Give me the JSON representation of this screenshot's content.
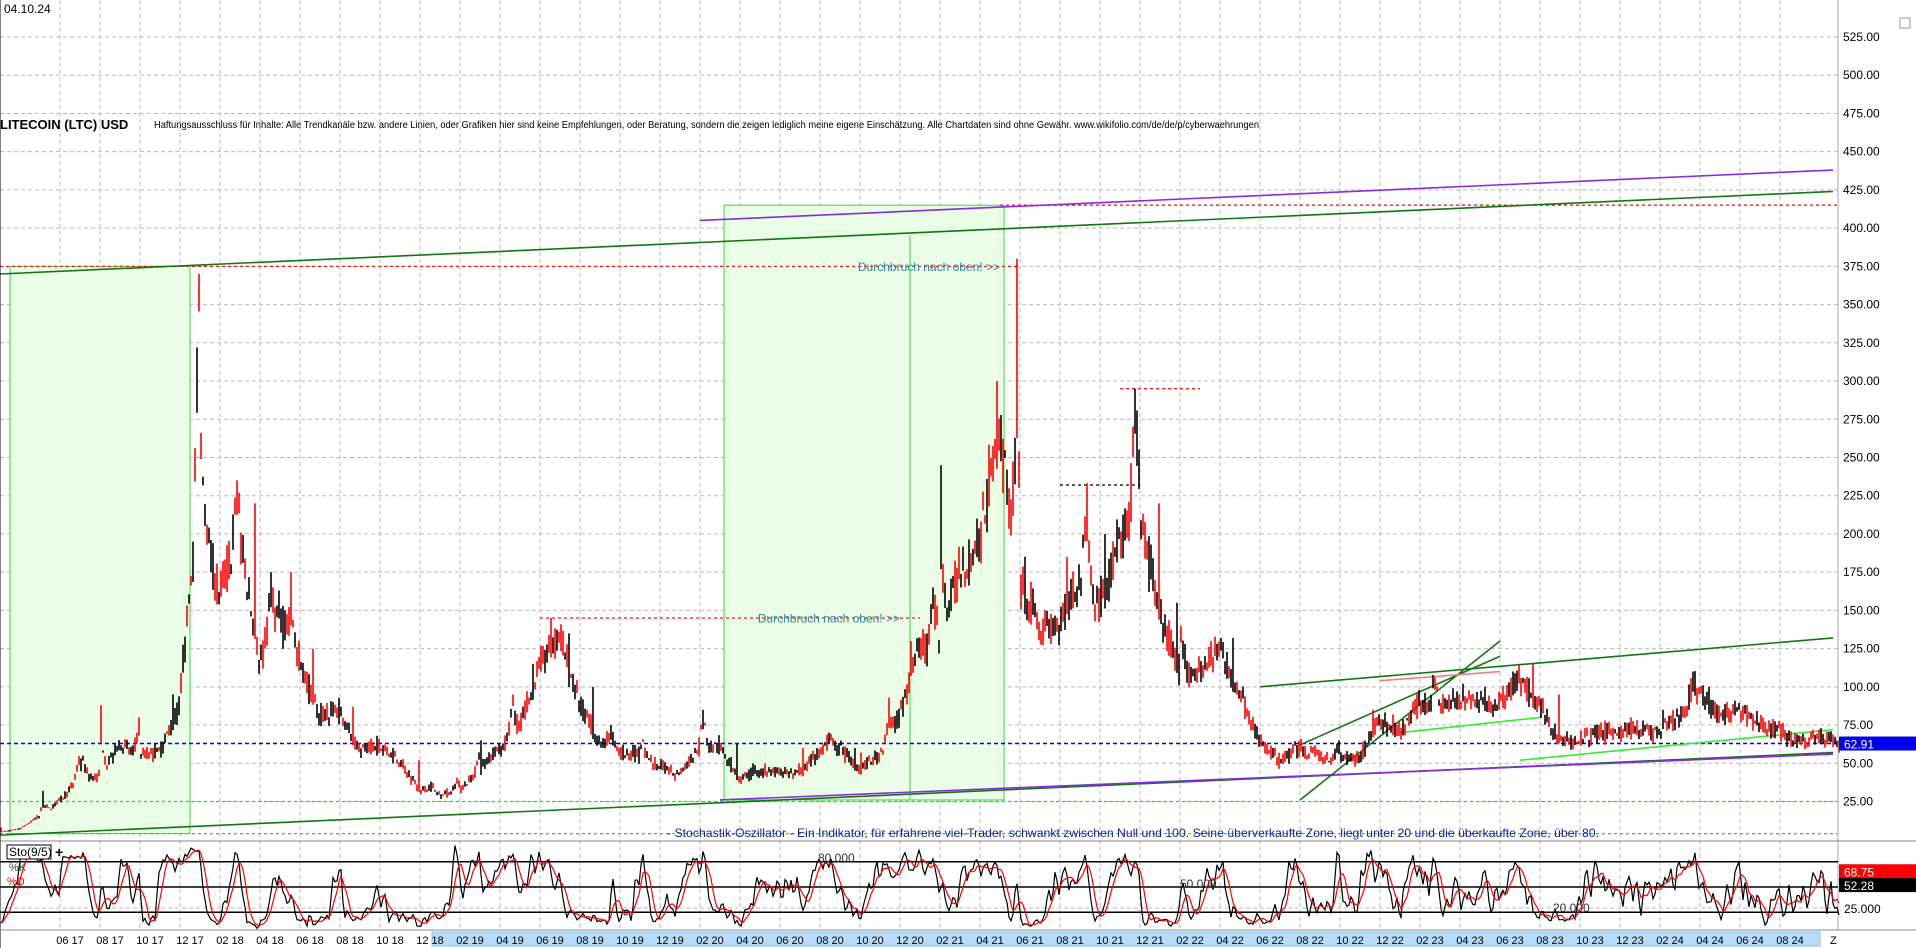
{
  "header": {
    "date": "04.10.24",
    "title": "LITECOIN (LTC) USD",
    "disclaimer": "Haftungsausschluss für Inhalte: Alle Trendkanäle bzw. andere Linien, oder Grafiken hier sind keine Empfehlungen, oder Beratung, sondern die zeigen lediglich meine eigene Einschätzung. Alle Chartdaten sind ohne Gewähr.  www.wikifolio.com/de/de/p/cyberwaehrungen"
  },
  "colors": {
    "up_bar": "#000000",
    "down_bar": "#ff0000",
    "box_fill": "#eafde6",
    "box_border": "#33dd33",
    "trend_green": "#117711",
    "trend_purple": "#8a2be2",
    "level_red": "#ee2222",
    "last_price": "#0000ee",
    "annotation": "#2a8a9a",
    "note": "#1a1aa0"
  },
  "chart_data": {
    "type": "bar",
    "title": "LITECOIN (LTC) USD",
    "months": [
      "2017-03",
      "2017-04",
      "2017-05",
      "2017-06",
      "2017-07",
      "2017-08",
      "2017-09",
      "2017-10",
      "2017-11",
      "2017-12",
      "2018-01",
      "2018-02",
      "2018-03",
      "2018-04",
      "2018-05",
      "2018-06",
      "2018-07",
      "2018-08",
      "2018-09",
      "2018-10",
      "2018-11",
      "2018-12",
      "2019-01",
      "2019-02",
      "2019-03",
      "2019-04",
      "2019-05",
      "2019-06",
      "2019-07",
      "2019-08",
      "2019-09",
      "2019-10",
      "2019-11",
      "2019-12",
      "2020-01",
      "2020-02",
      "2020-03",
      "2020-04",
      "2020-05",
      "2020-06",
      "2020-07",
      "2020-08",
      "2020-09",
      "2020-10",
      "2020-11",
      "2020-12",
      "2021-01",
      "2021-02",
      "2021-03",
      "2021-04",
      "2021-05",
      "2021-06",
      "2021-07",
      "2021-08",
      "2021-09",
      "2021-10",
      "2021-11",
      "2021-12",
      "2022-01",
      "2022-02",
      "2022-03",
      "2022-04",
      "2022-05",
      "2022-06",
      "2022-07",
      "2022-08",
      "2022-09",
      "2022-10",
      "2022-11",
      "2022-12",
      "2023-01",
      "2023-02",
      "2023-03",
      "2023-04",
      "2023-05",
      "2023-06",
      "2023-07",
      "2023-08",
      "2023-09",
      "2023-10",
      "2023-11",
      "2023-12",
      "2024-01",
      "2024-02",
      "2024-03",
      "2024-04",
      "2024-05",
      "2024-06",
      "2024-07",
      "2024-08",
      "2024-09",
      "2024-10"
    ],
    "close": [
      7,
      15,
      25,
      40,
      42,
      62,
      55,
      57,
      86,
      230,
      160,
      200,
      117,
      147,
      118,
      80,
      85,
      58,
      62,
      52,
      33,
      30,
      32,
      45,
      60,
      73,
      112,
      135,
      90,
      65,
      57,
      56,
      48,
      42,
      60,
      62,
      40,
      45,
      45,
      42,
      57,
      60,
      46,
      55,
      80,
      125,
      130,
      175,
      195,
      270,
      170,
      140,
      140,
      170,
      155,
      195,
      215,
      150,
      110,
      110,
      125,
      100,
      65,
      52,
      60,
      55,
      53,
      53,
      78,
      70,
      88,
      90,
      90,
      90,
      90,
      105,
      90,
      65,
      65,
      70,
      70,
      72,
      70,
      80,
      95,
      82,
      85,
      75,
      70,
      65,
      67,
      63
    ],
    "high": [
      8,
      16,
      32,
      53,
      55,
      88,
      80,
      63,
      95,
      365,
      265,
      235,
      220,
      175,
      175,
      125,
      90,
      87,
      68,
      60,
      52,
      38,
      40,
      55,
      65,
      95,
      115,
      145,
      135,
      100,
      75,
      62,
      65,
      52,
      67,
      85,
      63,
      50,
      50,
      50,
      60,
      70,
      60,
      57,
      93,
      130,
      165,
      245,
      210,
      300,
      380,
      185,
      150,
      185,
      230,
      200,
      295,
      220,
      155,
      135,
      130,
      132,
      100,
      65,
      62,
      66,
      65,
      58,
      85,
      82,
      95,
      105,
      95,
      102,
      100,
      110,
      115,
      95,
      68,
      75,
      78,
      80,
      75,
      85,
      110,
      100,
      90,
      88,
      80,
      70,
      72,
      68
    ],
    "last_price": "62.91",
    "ylabel": "",
    "ylim": [
      0,
      537
    ],
    "y_ticks": [
      "25.00",
      "50.00",
      "75.00",
      "100.00",
      "125.00",
      "150.00",
      "175.00",
      "200.00",
      "225.00",
      "250.00",
      "275.00",
      "300.00",
      "325.00",
      "350.00",
      "375.00",
      "400.00",
      "425.00",
      "450.00",
      "475.00",
      "500.00",
      "525.00"
    ],
    "x_ticks": [
      "06 17",
      "08 17",
      "10 17",
      "12 17",
      "02 18",
      "04 18",
      "06 18",
      "08 18",
      "10 18",
      "12 18",
      "02 19",
      "04 19",
      "06 19",
      "08 19",
      "10 19",
      "12 19",
      "02 20",
      "04 20",
      "06 20",
      "08 20",
      "10 20",
      "12 20",
      "02 21",
      "04 21",
      "06 21",
      "08 21",
      "10 21",
      "12 21",
      "02 22",
      "04 22",
      "06 22",
      "08 22",
      "10 22",
      "12 22",
      "02 23",
      "04 23",
      "06 23",
      "08 23",
      "10 23",
      "12 23",
      "02 24",
      "04 24",
      "06 24",
      "08 24"
    ],
    "x_end_label": "Z",
    "grid": true,
    "boxes": [
      {
        "from": "2017-03",
        "from_frac": 0.5,
        "to": "2017-12",
        "to_frac": 0.5,
        "low": 4,
        "high": 375
      },
      {
        "from": "2020-03",
        "from_frac": 0.2,
        "to": "2021-05",
        "to_frac": 0.2,
        "low": 26,
        "high": 415
      }
    ],
    "levels": [
      {
        "price": 375,
        "from": "2017-03",
        "to": "2021-05",
        "style": "red-dashed"
      },
      {
        "price": 145,
        "from": "2019-06",
        "to": "2020-12",
        "style": "red-dashed"
      },
      {
        "price": 295,
        "from": "2021-11",
        "to": "2022-02",
        "style": "red-dashed"
      },
      {
        "price": 232,
        "from": "2021-08",
        "to": "2021-11",
        "style": "black-dashed"
      },
      {
        "price": 415,
        "from": "2021-05",
        "to": "2024-10",
        "style": "red-dashed"
      },
      {
        "price": 25,
        "from": "2017-03",
        "to": "2024-10",
        "style": "green-dashed"
      },
      {
        "price": 4,
        "from": "2017-03",
        "to": "2024-10",
        "style": "green-dashed"
      }
    ],
    "trendlines": [
      {
        "from": [
          "2017-03",
          370
        ],
        "to": [
          "2024-11",
          424
        ],
        "color": "green"
      },
      {
        "from": [
          "2020-02",
          405
        ],
        "to": [
          "2024-11",
          438
        ],
        "color": "purple"
      },
      {
        "from": [
          "2017-03",
          3
        ],
        "to": [
          "2024-11",
          57
        ],
        "color": "green"
      },
      {
        "from": [
          "2020-03",
          26
        ],
        "to": [
          "2024-11",
          56
        ],
        "color": "purple"
      },
      {
        "from": [
          "2022-06",
          100
        ],
        "to": [
          "2024-11",
          132
        ],
        "color": "green"
      },
      {
        "from": [
          "2022-08",
          26
        ],
        "to": [
          "2023-06",
          130
        ],
        "color": "green"
      },
      {
        "from": [
          "2022-08",
          62
        ],
        "to": [
          "2023-06",
          120
        ],
        "color": "green"
      },
      {
        "from": [
          "2023-01",
          70
        ],
        "to": [
          "2023-08",
          80
        ],
        "color": "lime"
      },
      {
        "from": [
          "2023-07",
          52
        ],
        "to": [
          "2024-11",
          72
        ],
        "color": "lime"
      },
      {
        "from": [
          "2022-12",
          104
        ],
        "to": [
          "2023-06",
          110
        ],
        "color": "salmon"
      }
    ],
    "annotations": [
      {
        "text": "Durchbruch nach oben! >>",
        "month": "2021-05",
        "price": 372
      },
      {
        "text": "Durchbruch nach oben! >>",
        "month": "2020-12",
        "price": 142
      }
    ],
    "note": "- Stochastik-Oszillator - Ein Indikator, für erfahrene viel-Trader, schwankt zwischen Null und 100. Seine überverkaufte Zone, liegt unter 20 und die überkaufte Zone, über 80.",
    "stochastic": {
      "name": "Sto(9/5)",
      "k_label": "%K",
      "d_label": "%D",
      "levels": [
        "80.000",
        "50.000",
        "20.000"
      ],
      "k_value": "68.75",
      "d_value": "52.28",
      "axis_label": "25.000"
    }
  }
}
